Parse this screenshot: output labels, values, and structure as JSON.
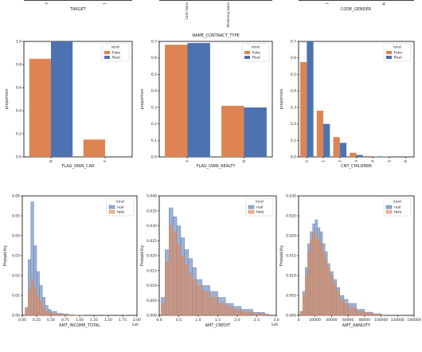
{
  "colors": {
    "fake": "#dd8452",
    "real": "#4c72b0",
    "axis": "#000000",
    "text": "#222222"
  },
  "top_strip": {
    "labels": [
      "TARGET",
      "NAME_CONTRACT_TYPE",
      "CODE_GENDER"
    ]
  },
  "chart_data": [
    {
      "type": "bar",
      "title": "",
      "xlabel": "TARGET",
      "ylabel": "",
      "categories": [
        "0",
        "1"
      ],
      "series": [],
      "partial": true
    },
    {
      "type": "bar",
      "title": "",
      "xlabel": "NAME_CONTRACT_TYPE",
      "ylabel": "",
      "categories": [
        "Cash loans",
        "Revolving loans"
      ],
      "series": [],
      "partial": true
    },
    {
      "type": "bar",
      "title": "",
      "xlabel": "CODE_GENDER",
      "ylabel": "",
      "categories": [
        "F",
        "M"
      ],
      "series": [],
      "partial": true
    },
    {
      "type": "bar",
      "xlabel": "FLAG_OWN_CAR",
      "ylabel": "proportion",
      "ylim": [
        0,
        1.0
      ],
      "yticks": [
        "0.0",
        "0.2",
        "0.4",
        "0.6",
        "0.8",
        "1.0"
      ],
      "categories": [
        "N",
        "Y"
      ],
      "legend": {
        "title": "kind",
        "position": "top-right"
      },
      "series": [
        {
          "name": "Fake",
          "values": [
            0.85,
            0.15
          ]
        },
        {
          "name": "Real",
          "values": [
            1.0,
            0.0
          ]
        }
      ]
    },
    {
      "type": "bar",
      "xlabel": "FLAG_OWN_REALTY",
      "ylabel": "proportion",
      "ylim": [
        0,
        0.7
      ],
      "yticks": [
        "0.0",
        "0.1",
        "0.2",
        "0.3",
        "0.4",
        "0.5",
        "0.6",
        "0.7"
      ],
      "categories": [
        "Y",
        "N"
      ],
      "legend": {
        "title": "kind",
        "position": "top-right"
      },
      "series": [
        {
          "name": "Fake",
          "values": [
            0.68,
            0.31
          ]
        },
        {
          "name": "Real",
          "values": [
            0.69,
            0.3
          ]
        }
      ]
    },
    {
      "type": "bar",
      "xlabel": "CNT_CHILDREN",
      "ylabel": "proportion",
      "ylim": [
        0,
        0.7
      ],
      "yticks": [
        "0.0",
        "0.1",
        "0.2",
        "0.3",
        "0.4",
        "0.5",
        "0.6",
        "0.7"
      ],
      "categories": [
        "0",
        "1",
        "2",
        "3",
        "4",
        "5",
        "6"
      ],
      "legend": {
        "title": "kind",
        "position": "top-right"
      },
      "series": [
        {
          "name": "Fake",
          "values": [
            0.575,
            0.28,
            0.12,
            0.025,
            0.005,
            0.002,
            0.0
          ]
        },
        {
          "name": "Real",
          "values": [
            0.7,
            0.2,
            0.085,
            0.012,
            0.002,
            0.0,
            0.0
          ]
        }
      ]
    },
    {
      "type": "area",
      "xlabel": "AMT_INCOME_TOTAL",
      "ylabel": "Probability",
      "xlim": [
        0,
        2000000
      ],
      "ylim": [
        0,
        0.06
      ],
      "xticks": [
        "0.00",
        "0.25",
        "0.50",
        "0.75",
        "1.00",
        "1.25",
        "1.50",
        "1.75",
        "2.00"
      ],
      "yticks": [
        "0.00",
        "0.01",
        "0.02",
        "0.03",
        "0.04",
        "0.05",
        "0.06"
      ],
      "x_multiplier": "1e6",
      "legend": {
        "title": "kind",
        "position": "top-right"
      },
      "x": [
        0,
        50000,
        100000,
        150000,
        200000,
        250000,
        300000,
        350000,
        400000,
        450000,
        500000,
        600000,
        700000,
        800000,
        900000,
        1000000
      ],
      "series": [
        {
          "name": "real",
          "values": [
            0.0,
            0.004,
            0.028,
            0.057,
            0.035,
            0.022,
            0.015,
            0.009,
            0.005,
            0.003,
            0.002,
            0.001,
            0.0007,
            0.0004,
            0.0002,
            0.0001
          ]
        },
        {
          "name": "fake",
          "values": [
            0.0,
            0.003,
            0.013,
            0.018,
            0.014,
            0.01,
            0.007,
            0.004,
            0.002,
            0.0015,
            0.001,
            0.0005,
            0.0003,
            0.0002,
            0.0001,
            0.0
          ]
        }
      ]
    },
    {
      "type": "area",
      "xlabel": "AMT_CREDIT",
      "ylabel": "Probability",
      "xlim": [
        0,
        3000000
      ],
      "ylim": [
        0,
        0.04
      ],
      "xticks": [
        "0.0",
        "0.5",
        "1.0",
        "1.5",
        "2.0",
        "2.5",
        "3.0"
      ],
      "yticks": [
        "0.000",
        "0.005",
        "0.010",
        "0.015",
        "0.020",
        "0.025",
        "0.030",
        "0.035",
        "0.040"
      ],
      "x_multiplier": "1e6",
      "legend": {
        "title": "kind",
        "position": "top-right"
      },
      "x": [
        50000,
        150000,
        250000,
        350000,
        450000,
        550000,
        650000,
        750000,
        850000,
        950000,
        1100000,
        1300000,
        1500000,
        1700000,
        1900000,
        2100000,
        2400000,
        2700000
      ],
      "series": [
        {
          "name": "real",
          "values": [
            0.006,
            0.022,
            0.036,
            0.033,
            0.03,
            0.026,
            0.022,
            0.019,
            0.016,
            0.012,
            0.01,
            0.008,
            0.006,
            0.004,
            0.003,
            0.002,
            0.001,
            0.0005
          ]
        },
        {
          "name": "fake",
          "values": [
            0.004,
            0.018,
            0.03,
            0.028,
            0.024,
            0.02,
            0.017,
            0.014,
            0.012,
            0.01,
            0.008,
            0.006,
            0.004,
            0.003,
            0.002,
            0.0012,
            0.0006,
            0.0002
          ]
        }
      ]
    },
    {
      "type": "area",
      "xlabel": "AMT_ANNUITY",
      "ylabel": "Probability",
      "xlim": [
        0,
        140000
      ],
      "ylim": [
        0,
        0.03
      ],
      "xticks": [
        "0",
        "20000",
        "40000",
        "60000",
        "80000",
        "100000",
        "120000",
        "140000"
      ],
      "yticks": [
        "0.000",
        "0.005",
        "0.010",
        "0.015",
        "0.020",
        "0.025",
        "0.030"
      ],
      "legend": {
        "title": "kind",
        "position": "top-right"
      },
      "x": [
        2000,
        5000,
        8000,
        11000,
        14000,
        17000,
        20000,
        23000,
        26000,
        29000,
        32000,
        35000,
        38000,
        42000,
        46000,
        50000,
        55000,
        60000,
        70000,
        80000,
        90000,
        100000
      ],
      "series": [
        {
          "name": "real",
          "values": [
            0.001,
            0.006,
            0.012,
            0.018,
            0.021,
            0.023,
            0.024,
            0.022,
            0.021,
            0.018,
            0.016,
            0.013,
            0.011,
            0.009,
            0.007,
            0.005,
            0.004,
            0.003,
            0.0015,
            0.0008,
            0.0004,
            0.0002
          ]
        },
        {
          "name": "fake",
          "values": [
            0.001,
            0.005,
            0.01,
            0.016,
            0.019,
            0.021,
            0.02,
            0.019,
            0.018,
            0.016,
            0.014,
            0.012,
            0.01,
            0.008,
            0.006,
            0.004,
            0.003,
            0.002,
            0.001,
            0.0006,
            0.0003,
            0.0001
          ]
        }
      ]
    }
  ]
}
